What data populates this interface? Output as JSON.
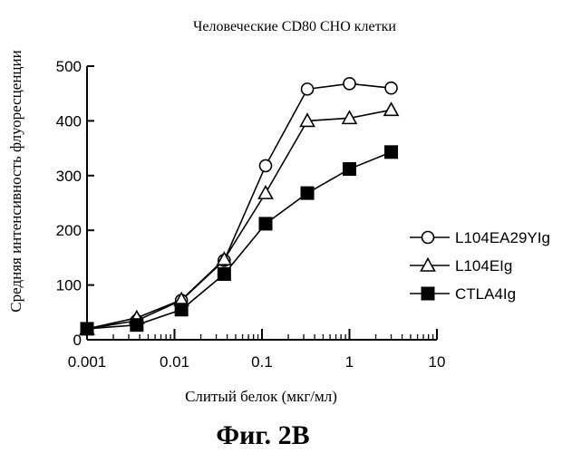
{
  "figure_label": "Фиг. 2B",
  "chart_data": {
    "type": "line",
    "title": "Человеческие CD80 CHO клетки",
    "xlabel": "Слитый белок (мкг/мл)",
    "ylabel": "Средняя интенсивность флуоресценции",
    "x_scale": "log",
    "xlim": [
      0.001,
      10
    ],
    "ylim": [
      0,
      500
    ],
    "x_ticks": [
      "0.001",
      "0.01",
      "0.1",
      "1",
      "10"
    ],
    "y_ticks": [
      "0",
      "100",
      "200",
      "300",
      "400",
      "500"
    ],
    "x": [
      0.001,
      0.0037,
      0.012,
      0.037,
      0.11,
      0.33,
      1,
      3
    ],
    "series": [
      {
        "name": "L104EA29YIg",
        "marker": "circle-open",
        "values": [
          20,
          35,
          72,
          145,
          318,
          458,
          468,
          460
        ]
      },
      {
        "name": "L104EIg",
        "marker": "triangle-open",
        "values": [
          20,
          40,
          73,
          147,
          268,
          400,
          405,
          420
        ]
      },
      {
        "name": "CTLA4Ig",
        "marker": "square-filled",
        "values": [
          20,
          27,
          55,
          120,
          212,
          268,
          312,
          343
        ]
      }
    ],
    "legend_position": "right",
    "grid": false,
    "colors": {
      "line": "#000000",
      "background": "#ffffff"
    }
  }
}
